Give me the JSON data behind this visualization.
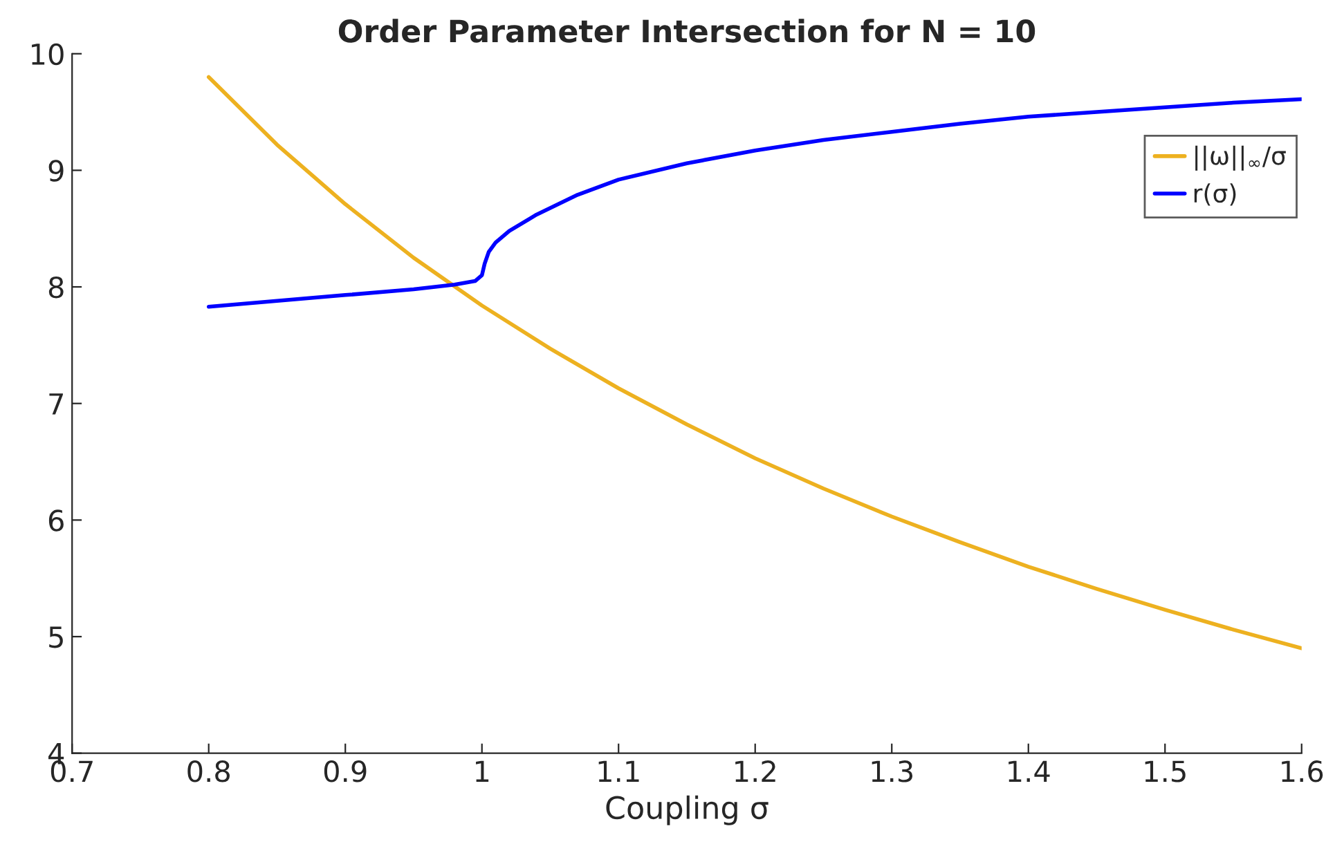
{
  "chart_data": {
    "type": "line",
    "title": "Order Parameter Intersection for N = 10",
    "xlabel": "Coupling σ",
    "xlim": [
      0.7,
      1.6
    ],
    "xticks": [
      0.7,
      0.8,
      0.9,
      1,
      1.1,
      1.2,
      1.3,
      1.4,
      1.5,
      1.6
    ],
    "ylim": [
      4,
      10
    ],
    "yticks": [
      4,
      5,
      6,
      7,
      8,
      9,
      10
    ],
    "grid": false,
    "legend": "top right",
    "marker": "none",
    "line_style": "solid",
    "series": [
      {
        "name": "||ω||$_{∞}$/σ",
        "color": "#edb120",
        "x": [
          0.8,
          0.85,
          0.9,
          0.95,
          1.0,
          1.05,
          1.1,
          1.15,
          1.2,
          1.25,
          1.3,
          1.35,
          1.4,
          1.45,
          1.5,
          1.55,
          1.6
        ],
        "values": [
          9.8,
          9.22,
          8.71,
          8.25,
          7.84,
          7.47,
          7.13,
          6.82,
          6.53,
          6.27,
          6.03,
          5.81,
          5.6,
          5.41,
          5.23,
          5.06,
          4.9
        ]
      },
      {
        "name": "r(σ)",
        "color": "#0000ff",
        "x": [
          0.8,
          0.85,
          0.9,
          0.95,
          0.98,
          0.995,
          1.0,
          1.002,
          1.005,
          1.01,
          1.02,
          1.04,
          1.07,
          1.1,
          1.15,
          1.2,
          1.25,
          1.3,
          1.35,
          1.4,
          1.45,
          1.5,
          1.55,
          1.6
        ],
        "values": [
          7.83,
          7.88,
          7.93,
          7.98,
          8.02,
          8.05,
          8.1,
          8.2,
          8.3,
          8.38,
          8.48,
          8.62,
          8.79,
          8.92,
          9.06,
          9.17,
          9.26,
          9.33,
          9.4,
          9.46,
          9.5,
          9.54,
          9.58,
          9.61
        ]
      }
    ]
  }
}
